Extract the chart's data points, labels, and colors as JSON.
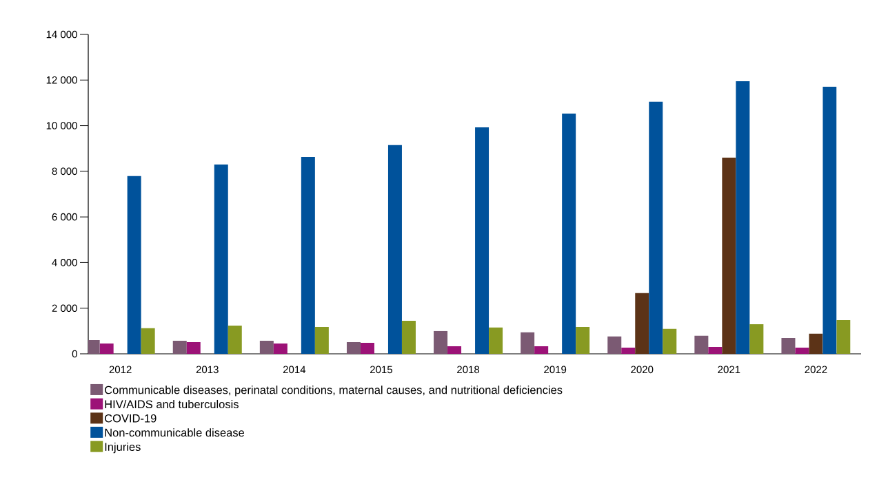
{
  "chart_data": {
    "type": "bar",
    "categories": [
      "2012",
      "2013",
      "2014",
      "2015",
      "2018",
      "2019",
      "2020",
      "2021",
      "2022"
    ],
    "series": [
      {
        "name": "Communicable diseases, perinatal conditions, maternal causes, and nutritional deficiencies",
        "color": "#7b5a73",
        "values": [
          600,
          570,
          570,
          510,
          1000,
          940,
          760,
          790,
          690
        ]
      },
      {
        "name": "HIV/AIDS and tuberculosis",
        "color": "#9c1277",
        "values": [
          450,
          510,
          450,
          480,
          330,
          330,
          270,
          300,
          270
        ]
      },
      {
        "name": "COVID-19",
        "color": "#5c3317",
        "values": [
          null,
          null,
          null,
          null,
          null,
          null,
          2660,
          8600,
          880
        ]
      },
      {
        "name": "Non-communicable disease",
        "color": "#00529b",
        "values": [
          7790,
          8300,
          8630,
          9150,
          9930,
          10530,
          11050,
          11950,
          11710
        ]
      },
      {
        "name": "Injuries",
        "color": "#889a22",
        "values": [
          1120,
          1240,
          1180,
          1450,
          1150,
          1180,
          1090,
          1300,
          1480
        ]
      }
    ],
    "ylim": [
      0,
      14000
    ],
    "yticks": [
      0,
      {
        "value": 2000,
        "label": "2 000"
      },
      {
        "value": 4000,
        "label": "4 000"
      },
      {
        "value": 6000,
        "label": "6 000"
      },
      {
        "value": 8000,
        "label": "8 000"
      },
      {
        "value": 10000,
        "label": "10 000"
      },
      {
        "value": 12000,
        "label": "12 000"
      },
      {
        "value": 14000,
        "label": "14 000"
      }
    ],
    "grid": false,
    "legend": "bottom left"
  }
}
